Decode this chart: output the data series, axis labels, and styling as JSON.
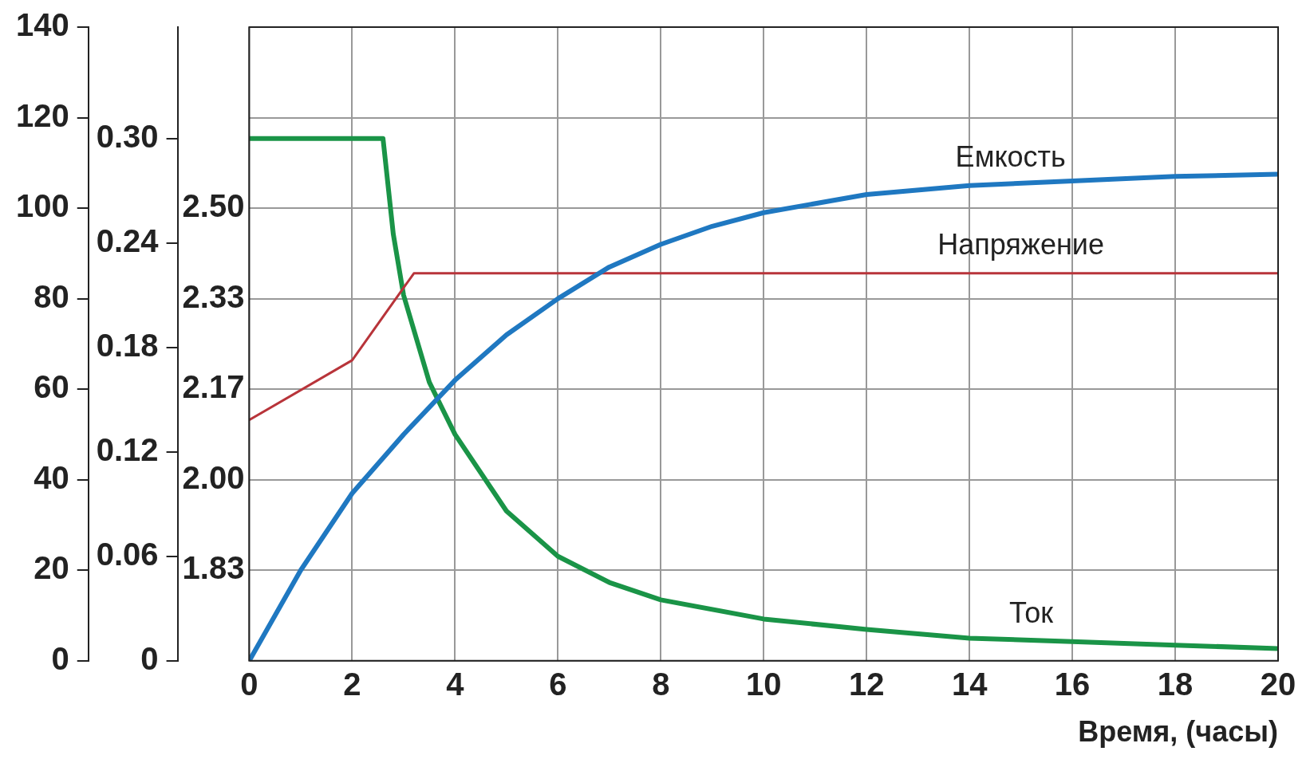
{
  "chart_data": {
    "type": "line",
    "xlabel": "Время, (часы)",
    "xlim": [
      0,
      20
    ],
    "xticks": [
      0,
      2,
      4,
      6,
      8,
      10,
      12,
      14,
      16,
      18,
      20
    ],
    "ylim": [
      0,
      140
    ],
    "yticks": [
      0,
      20,
      40,
      60,
      80,
      100,
      120,
      140
    ],
    "y2lim": [
      0,
      0.364
    ],
    "y2ticks": [
      0,
      0.06,
      0.12,
      0.18,
      0.24,
      {
        "value": 0.3,
        "label": "0.30"
      }
    ],
    "y3lim": [
      1.6667,
      2.8333
    ],
    "y3ticks": [
      {
        "value": 1.8333,
        "label": "1.83"
      },
      {
        "value": 2,
        "label": "2.00"
      },
      {
        "value": 2.1667,
        "label": "2.17"
      },
      {
        "value": 2.3333,
        "label": "2.33"
      },
      {
        "value": 2.5,
        "label": "2.50"
      }
    ],
    "grid": true,
    "legend": false,
    "marker": "none",
    "line_style": "solid",
    "series": [
      {
        "name": "Емкость",
        "color": "#1f78c1",
        "x": [
          0,
          1,
          2,
          3,
          4,
          5,
          6,
          7,
          8,
          9,
          10,
          12,
          14,
          16,
          18,
          20
        ],
        "values": [
          0,
          20,
          37,
          50,
          62,
          72,
          80,
          87,
          92,
          96,
          99,
          103,
          105,
          106,
          107,
          107.5
        ]
      },
      {
        "name": "Напряжение",
        "color": "#b8343a",
        "axis": "y3",
        "x": [
          0,
          2,
          3.2,
          20
        ],
        "values": [
          2.11,
          2.22,
          2.38,
          2.38
        ]
      },
      {
        "name": "Ток",
        "color": "#1a9447",
        "axis": "y2",
        "x": [
          0,
          2.6,
          2.8,
          3,
          3.5,
          4,
          5,
          6,
          7,
          8,
          10,
          12,
          14,
          16,
          18,
          20
        ],
        "values": [
          0.3,
          0.3,
          0.245,
          0.21,
          0.16,
          0.13,
          0.086,
          0.06,
          0.045,
          0.035,
          0.024,
          0.018,
          0.013,
          0.011,
          0.009,
          0.007
        ]
      }
    ]
  }
}
